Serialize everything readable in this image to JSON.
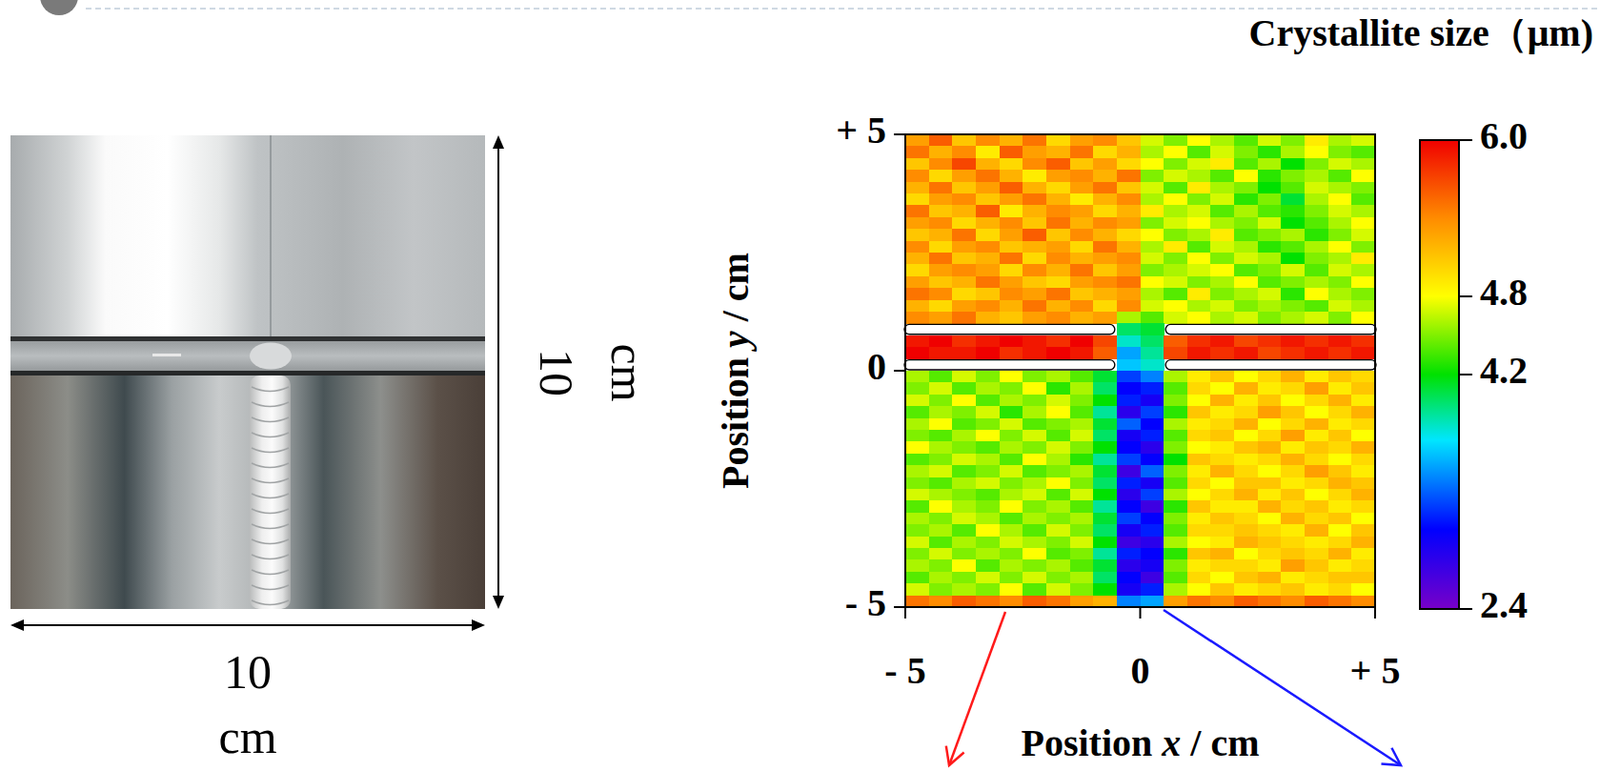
{
  "photo": {
    "width_label": "10 cm",
    "height_label": "10 cm"
  },
  "chart_data": {
    "type": "heatmap",
    "title": "Crystallite size（μm)",
    "x_label": "Position x / cm",
    "y_label": "Position y / cm",
    "xlim": [
      -5,
      5
    ],
    "ylim": [
      -5,
      5
    ],
    "xticks": [
      {
        "value": -5,
        "label": "- 5"
      },
      0,
      {
        "value": 5,
        "label": "+ 5"
      }
    ],
    "yticks": [
      {
        "value": -5,
        "label": "- 5"
      },
      0,
      {
        "value": 5,
        "label": "+ 5"
      }
    ],
    "colorbar_lim": [
      2.4,
      6.0
    ],
    "colorbar_ticks": [
      {
        "value": 6.0,
        "label": "6.0"
      },
      4.8,
      4.2,
      2.4
    ],
    "z": [
      [
        5.3,
        5.6,
        5.1,
        5.4,
        5.2,
        5.5,
        5.0,
        5.3,
        5.4,
        5.1,
        4.7,
        4.5,
        4.8,
        4.6,
        4.4,
        4.7,
        4.5,
        4.9,
        4.6,
        4.7
      ],
      [
        5.5,
        5.2,
        5.4,
        4.9,
        5.6,
        5.3,
        5.2,
        5.5,
        5.0,
        5.2,
        4.6,
        4.8,
        4.4,
        4.7,
        4.5,
        4.3,
        4.6,
        4.8,
        4.5,
        4.4
      ],
      [
        5.1,
        5.4,
        5.7,
        5.2,
        5.0,
        5.4,
        5.6,
        5.1,
        5.3,
        5.0,
        4.8,
        4.5,
        4.7,
        4.9,
        4.4,
        4.6,
        4.2,
        4.5,
        4.7,
        4.6
      ],
      [
        5.4,
        5.0,
        5.3,
        5.5,
        5.2,
        4.9,
        5.3,
        5.4,
        5.2,
        5.5,
        4.5,
        4.7,
        4.6,
        4.4,
        4.8,
        4.3,
        4.5,
        4.6,
        4.4,
        4.8
      ],
      [
        5.2,
        5.5,
        5.1,
        5.3,
        5.6,
        5.2,
        5.0,
        5.3,
        5.5,
        5.1,
        4.7,
        4.4,
        4.9,
        4.6,
        4.5,
        4.2,
        4.4,
        4.7,
        4.6,
        4.5
      ],
      [
        5.0,
        5.3,
        5.4,
        5.1,
        5.3,
        5.5,
        5.2,
        4.9,
        5.2,
        5.4,
        4.6,
        4.8,
        4.5,
        4.7,
        4.3,
        4.5,
        4.1,
        4.6,
        4.8,
        4.4
      ],
      [
        5.5,
        5.1,
        5.2,
        5.6,
        4.9,
        5.2,
        5.4,
        5.3,
        5.0,
        5.2,
        4.9,
        4.6,
        4.7,
        4.4,
        4.6,
        4.4,
        4.3,
        4.5,
        4.7,
        4.6
      ],
      [
        5.3,
        5.4,
        5.0,
        5.2,
        5.4,
        5.1,
        5.5,
        5.2,
        5.4,
        5.3,
        4.5,
        4.7,
        4.8,
        4.6,
        4.5,
        4.7,
        4.2,
        4.4,
        4.6,
        4.8
      ],
      [
        5.1,
        5.2,
        5.5,
        5.0,
        5.3,
        5.6,
        5.1,
        5.4,
        5.2,
        5.0,
        4.8,
        4.5,
        4.6,
        4.9,
        4.4,
        4.5,
        4.6,
        4.3,
        4.5,
        4.7
      ],
      [
        5.4,
        5.0,
        5.3,
        5.4,
        5.1,
        5.2,
        5.3,
        5.0,
        5.5,
        5.2,
        4.6,
        4.9,
        4.4,
        4.7,
        4.6,
        4.3,
        4.4,
        4.6,
        4.8,
        4.5
      ],
      [
        5.2,
        5.5,
        5.1,
        5.2,
        5.5,
        5.0,
        5.4,
        5.2,
        5.3,
        5.4,
        4.7,
        4.5,
        4.8,
        4.5,
        4.7,
        4.6,
        4.2,
        4.5,
        4.6,
        4.9
      ],
      [
        5.0,
        5.3,
        5.4,
        5.3,
        5.0,
        5.4,
        5.2,
        5.5,
        5.1,
        5.3,
        4.5,
        4.6,
        4.7,
        4.8,
        4.4,
        4.5,
        4.7,
        4.4,
        4.7,
        4.6
      ],
      [
        5.3,
        5.1,
        5.2,
        5.5,
        5.3,
        5.1,
        5.0,
        5.3,
        5.4,
        5.5,
        4.8,
        4.7,
        4.5,
        4.6,
        4.8,
        4.4,
        4.5,
        4.6,
        4.5,
        4.8
      ],
      [
        5.5,
        5.4,
        5.0,
        5.1,
        5.4,
        5.3,
        5.5,
        5.1,
        5.2,
        5.3,
        4.6,
        4.4,
        4.9,
        4.5,
        4.6,
        4.7,
        4.3,
        4.8,
        4.6,
        4.5
      ],
      [
        5.2,
        5.0,
        5.3,
        5.4,
        5.2,
        5.5,
        5.2,
        5.4,
        5.0,
        5.4,
        4.7,
        4.8,
        4.6,
        4.7,
        4.5,
        4.6,
        4.5,
        4.4,
        4.7,
        4.6
      ],
      [
        5.4,
        5.3,
        5.5,
        5.2,
        5.1,
        5.3,
        5.4,
        5.2,
        5.3,
        4.6,
        4.4,
        4.7,
        4.8,
        4.6,
        4.7,
        4.5,
        4.6,
        4.7,
        4.5,
        4.8
      ],
      [
        null,
        null,
        null,
        null,
        null,
        null,
        null,
        null,
        null,
        4.0,
        4.1,
        null,
        null,
        null,
        null,
        null,
        null,
        null,
        null,
        null
      ],
      [
        5.9,
        6.0,
        5.8,
        5.9,
        6.0,
        5.9,
        5.8,
        6.0,
        5.7,
        3.8,
        4.0,
        5.6,
        5.8,
        5.9,
        5.7,
        5.8,
        5.9,
        5.8,
        5.9,
        5.8
      ],
      [
        6.0,
        5.9,
        5.9,
        6.0,
        5.8,
        5.9,
        6.0,
        5.9,
        5.6,
        3.5,
        3.9,
        5.7,
        5.9,
        5.8,
        5.9,
        5.7,
        5.8,
        5.9,
        5.8,
        5.9
      ],
      [
        null,
        null,
        null,
        null,
        null,
        null,
        null,
        null,
        null,
        3.6,
        3.8,
        null,
        null,
        null,
        null,
        null,
        null,
        null,
        null,
        null
      ],
      [
        4.6,
        4.4,
        4.7,
        4.5,
        4.8,
        4.5,
        4.6,
        4.4,
        4.1,
        3.2,
        3.4,
        4.6,
        4.9,
        5.1,
        4.8,
        5.0,
        5.2,
        4.9,
        5.1,
        5.0
      ],
      [
        4.5,
        4.7,
        4.4,
        4.6,
        4.5,
        4.8,
        4.3,
        4.6,
        4.0,
        3.0,
        3.1,
        4.4,
        5.0,
        4.8,
        5.2,
        4.9,
        5.0,
        5.3,
        4.9,
        5.1
      ],
      [
        4.7,
        4.5,
        4.8,
        4.4,
        4.6,
        4.5,
        4.7,
        4.5,
        4.2,
        3.1,
        2.9,
        4.5,
        4.8,
        5.2,
        4.9,
        5.1,
        4.8,
        5.0,
        5.2,
        4.9
      ],
      [
        4.4,
        4.6,
        4.5,
        4.7,
        4.3,
        4.6,
        4.8,
        4.4,
        3.9,
        2.8,
        3.2,
        4.3,
        5.1,
        4.9,
        5.0,
        5.3,
        5.1,
        4.8,
        5.0,
        5.2
      ],
      [
        4.6,
        4.8,
        4.4,
        4.5,
        4.7,
        4.4,
        4.5,
        4.6,
        4.1,
        3.3,
        3.0,
        4.6,
        4.9,
        5.0,
        5.2,
        4.8,
        5.0,
        5.2,
        4.9,
        5.0
      ],
      [
        4.5,
        4.4,
        4.6,
        4.8,
        4.5,
        4.7,
        4.4,
        4.7,
        4.0,
        2.9,
        3.1,
        4.4,
        5.0,
        5.1,
        4.8,
        5.0,
        5.3,
        4.9,
        5.1,
        4.8
      ],
      [
        4.8,
        4.6,
        4.5,
        4.4,
        4.6,
        4.5,
        4.7,
        4.5,
        4.2,
        3.0,
        2.8,
        4.5,
        4.8,
        4.9,
        5.1,
        5.2,
        4.9,
        5.1,
        5.0,
        5.2
      ],
      [
        4.4,
        4.5,
        4.7,
        4.6,
        4.4,
        4.8,
        4.6,
        4.3,
        3.9,
        3.2,
        3.0,
        4.2,
        5.1,
        5.0,
        4.9,
        5.0,
        5.2,
        5.0,
        4.8,
        5.0
      ],
      [
        4.6,
        4.7,
        4.4,
        4.5,
        4.7,
        4.4,
        4.5,
        4.6,
        4.1,
        2.7,
        3.3,
        4.5,
        4.9,
        5.2,
        5.0,
        4.8,
        5.0,
        5.3,
        5.1,
        4.9
      ],
      [
        4.5,
        4.4,
        4.6,
        4.7,
        4.5,
        4.6,
        4.8,
        4.5,
        4.0,
        3.1,
        2.9,
        4.4,
        5.0,
        4.8,
        5.1,
        5.1,
        4.9,
        5.0,
        5.2,
        5.1
      ],
      [
        4.7,
        4.6,
        4.5,
        4.4,
        4.6,
        4.7,
        4.4,
        4.7,
        4.2,
        2.8,
        3.2,
        4.6,
        4.8,
        5.0,
        5.2,
        4.9,
        5.1,
        4.8,
        5.0,
        5.2
      ],
      [
        4.4,
        4.8,
        4.6,
        4.5,
        4.8,
        4.5,
        4.6,
        4.4,
        3.9,
        3.0,
        2.7,
        4.3,
        5.1,
        4.9,
        4.9,
        5.2,
        5.0,
        5.1,
        4.9,
        5.0
      ],
      [
        4.6,
        4.5,
        4.7,
        4.6,
        4.4,
        4.6,
        4.5,
        4.6,
        4.1,
        3.2,
        3.0,
        4.5,
        4.9,
        5.1,
        5.0,
        4.8,
        5.2,
        5.0,
        5.1,
        4.8
      ],
      [
        4.5,
        4.6,
        4.4,
        4.8,
        4.6,
        4.4,
        4.7,
        4.5,
        4.0,
        2.9,
        3.1,
        4.4,
        5.0,
        5.0,
        5.1,
        5.0,
        4.9,
        5.2,
        4.8,
        5.1
      ],
      [
        4.7,
        4.4,
        4.6,
        4.5,
        4.7,
        4.6,
        4.5,
        4.7,
        4.2,
        2.7,
        2.8,
        4.6,
        4.8,
        4.9,
        5.2,
        5.1,
        5.0,
        4.9,
        5.0,
        5.2
      ],
      [
        4.5,
        4.7,
        4.5,
        4.6,
        4.5,
        4.8,
        4.4,
        4.5,
        3.9,
        3.1,
        3.0,
        4.3,
        5.1,
        5.2,
        4.8,
        5.0,
        5.1,
        5.0,
        5.2,
        4.9
      ],
      [
        4.6,
        4.5,
        4.8,
        4.4,
        4.6,
        4.5,
        4.6,
        4.4,
        4.1,
        2.8,
        2.9,
        4.5,
        4.9,
        5.0,
        5.0,
        4.9,
        5.3,
        5.1,
        4.9,
        5.0
      ],
      [
        4.4,
        4.6,
        4.5,
        4.7,
        4.5,
        4.7,
        4.5,
        4.6,
        4.0,
        3.0,
        2.7,
        4.4,
        5.0,
        4.8,
        5.1,
        5.2,
        4.9,
        5.0,
        5.1,
        5.1
      ],
      [
        4.7,
        4.5,
        4.6,
        4.5,
        4.8,
        4.4,
        4.7,
        4.5,
        4.2,
        2.9,
        3.1,
        4.6,
        4.8,
        5.1,
        4.9,
        5.0,
        5.1,
        4.9,
        5.0,
        4.8
      ],
      [
        5.5,
        5.4,
        5.6,
        5.5,
        5.4,
        5.6,
        5.5,
        5.3,
        5.2,
        3.4,
        3.5,
        5.3,
        5.5,
        5.4,
        5.6,
        5.5,
        5.4,
        5.6,
        5.5,
        5.4
      ]
    ]
  }
}
